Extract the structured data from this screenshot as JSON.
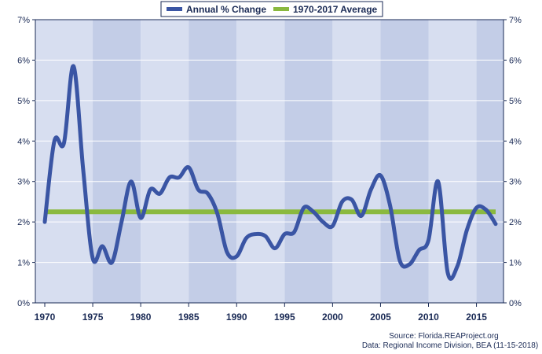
{
  "chart_data": {
    "type": "line",
    "xlim": [
      1970,
      2017
    ],
    "ylim": [
      0,
      7
    ],
    "y_ticks": [
      "0%",
      "1%",
      "2%",
      "3%",
      "4%",
      "5%",
      "6%",
      "7%"
    ],
    "x_ticks": [
      "1970",
      "1975",
      "1980",
      "1985",
      "1990",
      "1995",
      "2000",
      "2005",
      "2010",
      "2015"
    ],
    "legend_position": "top-center",
    "grid": true,
    "series": [
      {
        "name": "Annual % Change",
        "color": "#3a55a4",
        "x": [
          1970,
          1971,
          1972,
          1973,
          1974,
          1975,
          1976,
          1977,
          1978,
          1979,
          1980,
          1981,
          1982,
          1983,
          1984,
          1985,
          1986,
          1987,
          1988,
          1989,
          1990,
          1991,
          1992,
          1993,
          1994,
          1995,
          1996,
          1997,
          1998,
          1999,
          2000,
          2001,
          2002,
          2003,
          2004,
          2005,
          2006,
          2007,
          2008,
          2009,
          2010,
          2011,
          2012,
          2013,
          2014,
          2015,
          2016,
          2017
        ],
        "values": [
          2.0,
          4.0,
          3.95,
          5.85,
          3.3,
          1.1,
          1.4,
          1.0,
          2.0,
          3.0,
          2.1,
          2.8,
          2.7,
          3.1,
          3.1,
          3.35,
          2.8,
          2.7,
          2.2,
          1.25,
          1.15,
          1.6,
          1.7,
          1.65,
          1.35,
          1.7,
          1.75,
          2.35,
          2.25,
          2.0,
          1.9,
          2.5,
          2.55,
          2.15,
          2.8,
          3.15,
          2.4,
          1.05,
          0.95,
          1.3,
          1.55,
          3.0,
          0.75,
          0.9,
          1.8,
          2.35,
          2.3,
          1.95
        ]
      },
      {
        "name": "1970-2017 Average",
        "color": "#8ab93f",
        "x": [
          1970,
          2017
        ],
        "values": [
          2.25,
          2.25
        ]
      }
    ]
  },
  "notes": {
    "source": "Source: Florida.REAProject.org",
    "data": "Data: Regional Income Division, BEA (11-15-2018)"
  }
}
